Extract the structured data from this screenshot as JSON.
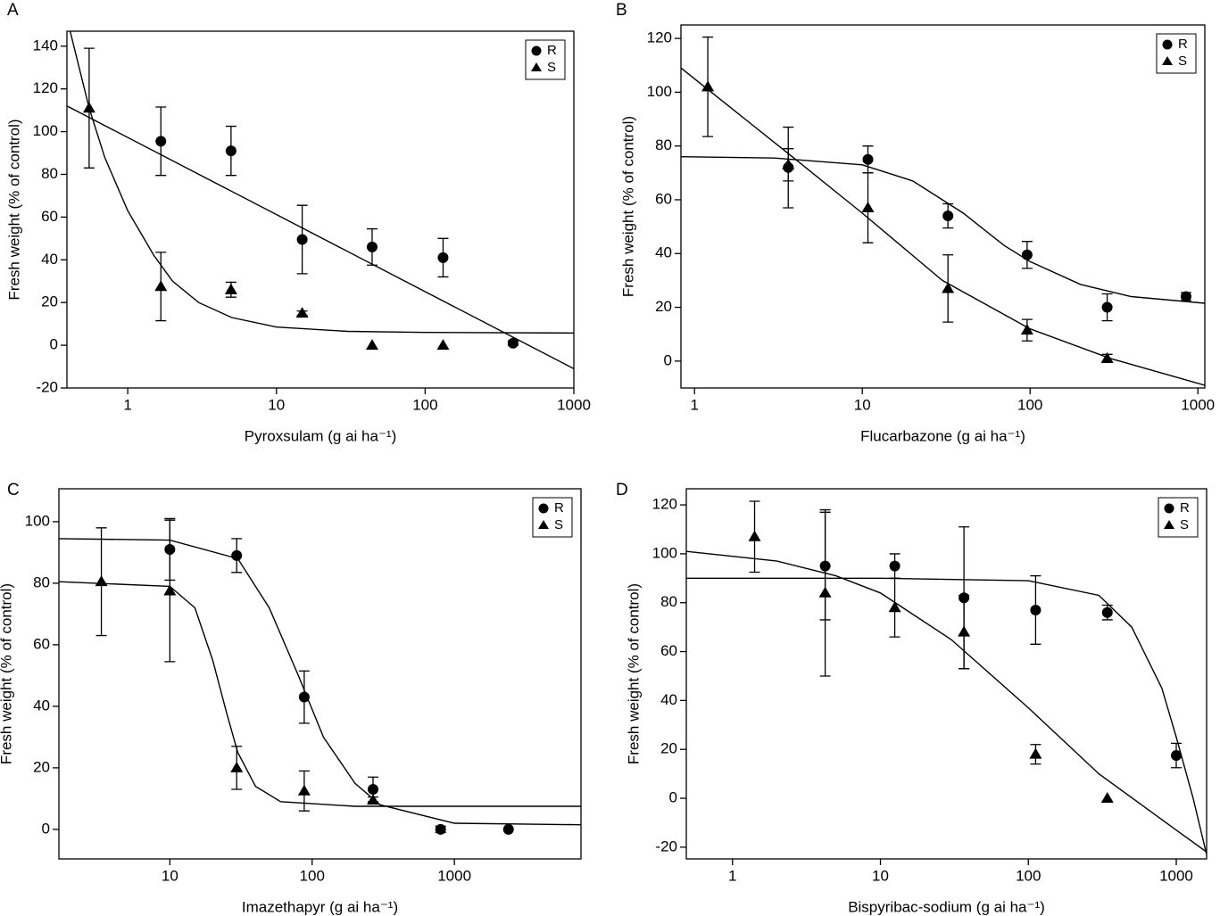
{
  "chart_data": [
    {
      "type": "scatter",
      "label": "A",
      "x_label": "Pyroxsulam (g ai ha⁻¹)",
      "y_label": "Fresh weight (% of control)",
      "xscale": "log",
      "xlim": [
        0.39,
        1000
      ],
      "xticks": [
        1,
        10,
        100,
        1000
      ],
      "ylim": [
        -20,
        147
      ],
      "yticks": [
        -20,
        0,
        20,
        40,
        60,
        80,
        100,
        120,
        140
      ],
      "legend": "upper right",
      "series": [
        {
          "name": "R",
          "marker": "circle",
          "color": "#000000",
          "x": [
            1.67,
            4.95,
            14.9,
            44,
            132,
            390
          ],
          "values": [
            95.5,
            91,
            49.5,
            46,
            41,
            1
          ],
          "errors": [
            16,
            11.5,
            16,
            8.5,
            9,
            1
          ],
          "fit_x": [
            0.39,
            1000
          ],
          "fit_values": [
            112,
            -11
          ]
        },
        {
          "name": "S",
          "marker": "triangle",
          "color": "#000000",
          "x": [
            0.55,
            1.67,
            4.95,
            14.9,
            44,
            132
          ],
          "values": [
            111,
            27.5,
            26,
            15,
            0,
            0
          ],
          "errors": [
            28,
            16,
            3.5,
            1,
            null,
            null
          ],
          "fit_x": [
            0.41,
            0.55,
            0.7,
            1,
            1.5,
            2,
            3,
            5,
            10,
            30,
            100,
            1000
          ],
          "fit_values": [
            147,
            111,
            88,
            63,
            42,
            30,
            20,
            13,
            8.5,
            6.5,
            6,
            5.7
          ]
        }
      ]
    },
    {
      "type": "scatter",
      "label": "B",
      "x_label": "Flucarbazone (g ai ha⁻¹)",
      "y_label": "Fresh weight (% of control)",
      "xscale": "log",
      "xlim": [
        0.83,
        1100
      ],
      "xticks": [
        1,
        10,
        100,
        1000
      ],
      "ylim": [
        -10,
        125
      ],
      "yticks": [
        0,
        20,
        40,
        60,
        80,
        100,
        120
      ],
      "legend": "upper right",
      "series": [
        {
          "name": "R",
          "marker": "circle",
          "color": "#000000",
          "x": [
            3.62,
            10.8,
            32.4,
            96,
            288,
            850
          ],
          "values": [
            72,
            75,
            54,
            39.5,
            20,
            24
          ],
          "errors": [
            15,
            5,
            4.5,
            5,
            5,
            1.5
          ],
          "fit_x": [
            0.83,
            3,
            10,
            20,
            40,
            70,
            100,
            200,
            400,
            1100
          ],
          "fit_values": [
            76,
            75.5,
            73,
            67,
            55,
            43,
            37,
            28.5,
            24,
            21.5
          ]
        },
        {
          "name": "S",
          "marker": "triangle",
          "color": "#000000",
          "x": [
            1.2,
            3.62,
            10.8,
            32.4,
            96,
            288
          ],
          "values": [
            102,
            73,
            57,
            27,
            11.5,
            1
          ],
          "errors": [
            18.5,
            6,
            13,
            12.5,
            4,
            1.5
          ],
          "fit_x": [
            0.83,
            2,
            4,
            10,
            30,
            100,
            300,
            1100
          ],
          "fit_values": [
            109,
            90,
            75,
            55,
            30,
            12,
            1,
            -9
          ]
        }
      ]
    },
    {
      "type": "scatter",
      "label": "C",
      "x_label": "Imazethapyr (g ai ha⁻¹)",
      "y_label": "Fresh weight (% of control)",
      "xscale": "log",
      "xlim": [
        1.66,
        7760
      ],
      "xticks": [
        10,
        100,
        1000
      ],
      "ylim": [
        -9.6,
        110.7
      ],
      "yticks": [
        0,
        20,
        40,
        60,
        80,
        100
      ],
      "legend": "upper right",
      "series": [
        {
          "name": "R",
          "marker": "circle",
          "color": "#000000",
          "x": [
            10,
            29.5,
            88,
            268,
            800,
            2400
          ],
          "values": [
            91,
            89,
            43,
            13,
            0,
            0
          ],
          "errors": [
            10,
            5.5,
            8.5,
            4,
            1,
            null
          ],
          "fit_x": [
            1.66,
            10,
            30,
            50,
            80,
            120,
            200,
            300,
            1000,
            7760
          ],
          "fit_values": [
            94.5,
            94,
            88,
            72,
            50,
            30,
            15,
            8,
            2,
            1.5
          ]
        },
        {
          "name": "S",
          "marker": "triangle",
          "color": "#000000",
          "x": [
            3.3,
            10,
            29.5,
            88,
            268
          ],
          "values": [
            80.5,
            77.5,
            20,
            12.5,
            9.5
          ],
          "errors": [
            17.5,
            23,
            7,
            6.5,
            1
          ],
          "fit_x": [
            1.66,
            10,
            15,
            20,
            25,
            30,
            40,
            60,
            200,
            7760
          ],
          "fit_values": [
            80.5,
            79,
            72,
            55,
            38,
            25,
            14,
            9,
            7.5,
            7.5
          ]
        }
      ]
    },
    {
      "type": "scatter",
      "label": "D",
      "x_label": "Bispyribac-sodium (g ai ha⁻¹)",
      "y_label": "Fresh weight (% of control)",
      "xscale": "log",
      "xlim": [
        0.487,
        1604
      ],
      "xticks": [
        1,
        10,
        100,
        1000
      ],
      "ylim": [
        -24.8,
        126.6
      ],
      "yticks": [
        -20,
        0,
        20,
        40,
        60,
        80,
        100,
        120
      ],
      "legend": "upper right",
      "series": [
        {
          "name": "R",
          "marker": "circle",
          "color": "#000000",
          "x": [
            4.23,
            12.5,
            36.7,
            112,
            342,
            1000
          ],
          "values": [
            95,
            95,
            82,
            77,
            76,
            17.5
          ],
          "errors": [
            22,
            5,
            29,
            14,
            3,
            5
          ],
          "fit_x": [
            0.487,
            10,
            100,
            300,
            500,
            800,
            1000,
            1300,
            1604
          ],
          "fit_values": [
            90,
            90,
            89,
            83,
            70,
            45,
            25,
            0,
            -23
          ]
        },
        {
          "name": "S",
          "marker": "triangle",
          "color": "#000000",
          "x": [
            1.41,
            4.23,
            12.5,
            36.7,
            112,
            342
          ],
          "values": [
            107,
            84,
            78,
            68,
            18,
            0
          ],
          "errors": [
            14.5,
            34,
            12,
            15,
            4,
            null
          ],
          "fit_x": [
            0.487,
            2,
            5,
            10,
            30,
            100,
            300,
            1000,
            1604
          ],
          "fit_values": [
            101,
            97,
            91,
            84,
            65,
            37,
            10,
            -13,
            -22
          ]
        }
      ]
    }
  ]
}
